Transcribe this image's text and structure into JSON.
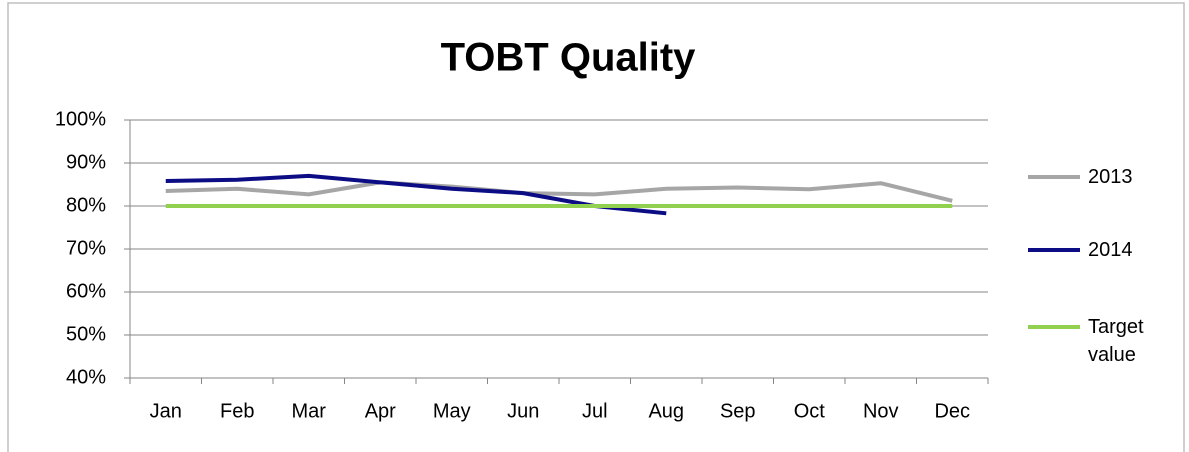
{
  "chart_data": {
    "type": "line",
    "title": "TOBT Quality",
    "categories": [
      "Jan",
      "Feb",
      "Mar",
      "Apr",
      "May",
      "Jun",
      "Jul",
      "Aug",
      "Sep",
      "Oct",
      "Nov",
      "Dec"
    ],
    "series": [
      {
        "name": "2013",
        "color": "#a6a6a6",
        "values": [
          83.5,
          84,
          82.7,
          85.5,
          84.5,
          83,
          82.7,
          84,
          84.3,
          83.9,
          85.3,
          81.2
        ]
      },
      {
        "name": "2014",
        "color": "#0c0c84",
        "values": [
          85.8,
          86.1,
          87,
          85.5,
          84,
          83,
          80,
          78.3,
          null,
          null,
          null,
          null
        ]
      },
      {
        "name": "Target value",
        "color": "#92d050",
        "values": [
          80,
          80,
          80,
          80,
          80,
          80,
          80,
          80,
          80,
          80,
          80,
          80
        ]
      }
    ],
    "ylim": [
      40,
      100
    ],
    "yticks": [
      {
        "value": 40,
        "label": "40%"
      },
      {
        "value": 50,
        "label": "50%"
      },
      {
        "value": 60,
        "label": "60%"
      },
      {
        "value": 70,
        "label": "70%"
      },
      {
        "value": 80,
        "label": "80%"
      },
      {
        "value": 90,
        "label": "90%"
      },
      {
        "value": 100,
        "label": "100%"
      }
    ],
    "grid": true,
    "legend": "right"
  }
}
